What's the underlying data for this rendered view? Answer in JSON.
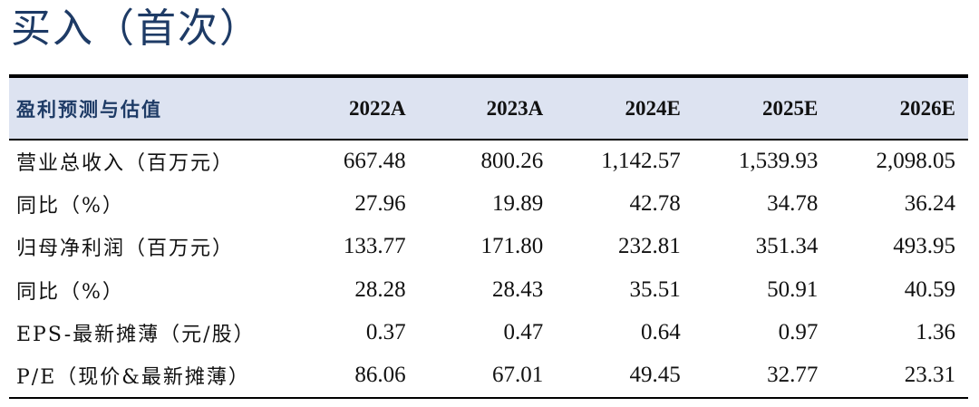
{
  "rating": "买入（首次）",
  "table": {
    "header": [
      "盈利预测与估值",
      "2022A",
      "2023A",
      "2024E",
      "2025E",
      "2026E"
    ],
    "rows": [
      {
        "label": "营业总收入（百万元）",
        "values": [
          "667.48",
          "800.26",
          "1,142.57",
          "1,539.93",
          "2,098.05"
        ]
      },
      {
        "label": "同比（%）",
        "values": [
          "27.96",
          "19.89",
          "42.78",
          "34.78",
          "36.24"
        ]
      },
      {
        "label": "归母净利润（百万元）",
        "values": [
          "133.77",
          "171.80",
          "232.81",
          "351.34",
          "493.95"
        ]
      },
      {
        "label": "同比（%）",
        "values": [
          "28.28",
          "28.43",
          "35.51",
          "50.91",
          "40.59"
        ]
      },
      {
        "label": "EPS-最新摊薄（元/股）",
        "values": [
          "0.37",
          "0.47",
          "0.64",
          "0.97",
          "1.36"
        ]
      },
      {
        "label": "P/E（现价&最新摊薄）",
        "values": [
          "86.06",
          "67.01",
          "49.45",
          "32.77",
          "23.31"
        ]
      }
    ]
  },
  "colors": {
    "accent": "#1e3b66",
    "header_bg": "#dde3f1",
    "rule": "#000000"
  }
}
